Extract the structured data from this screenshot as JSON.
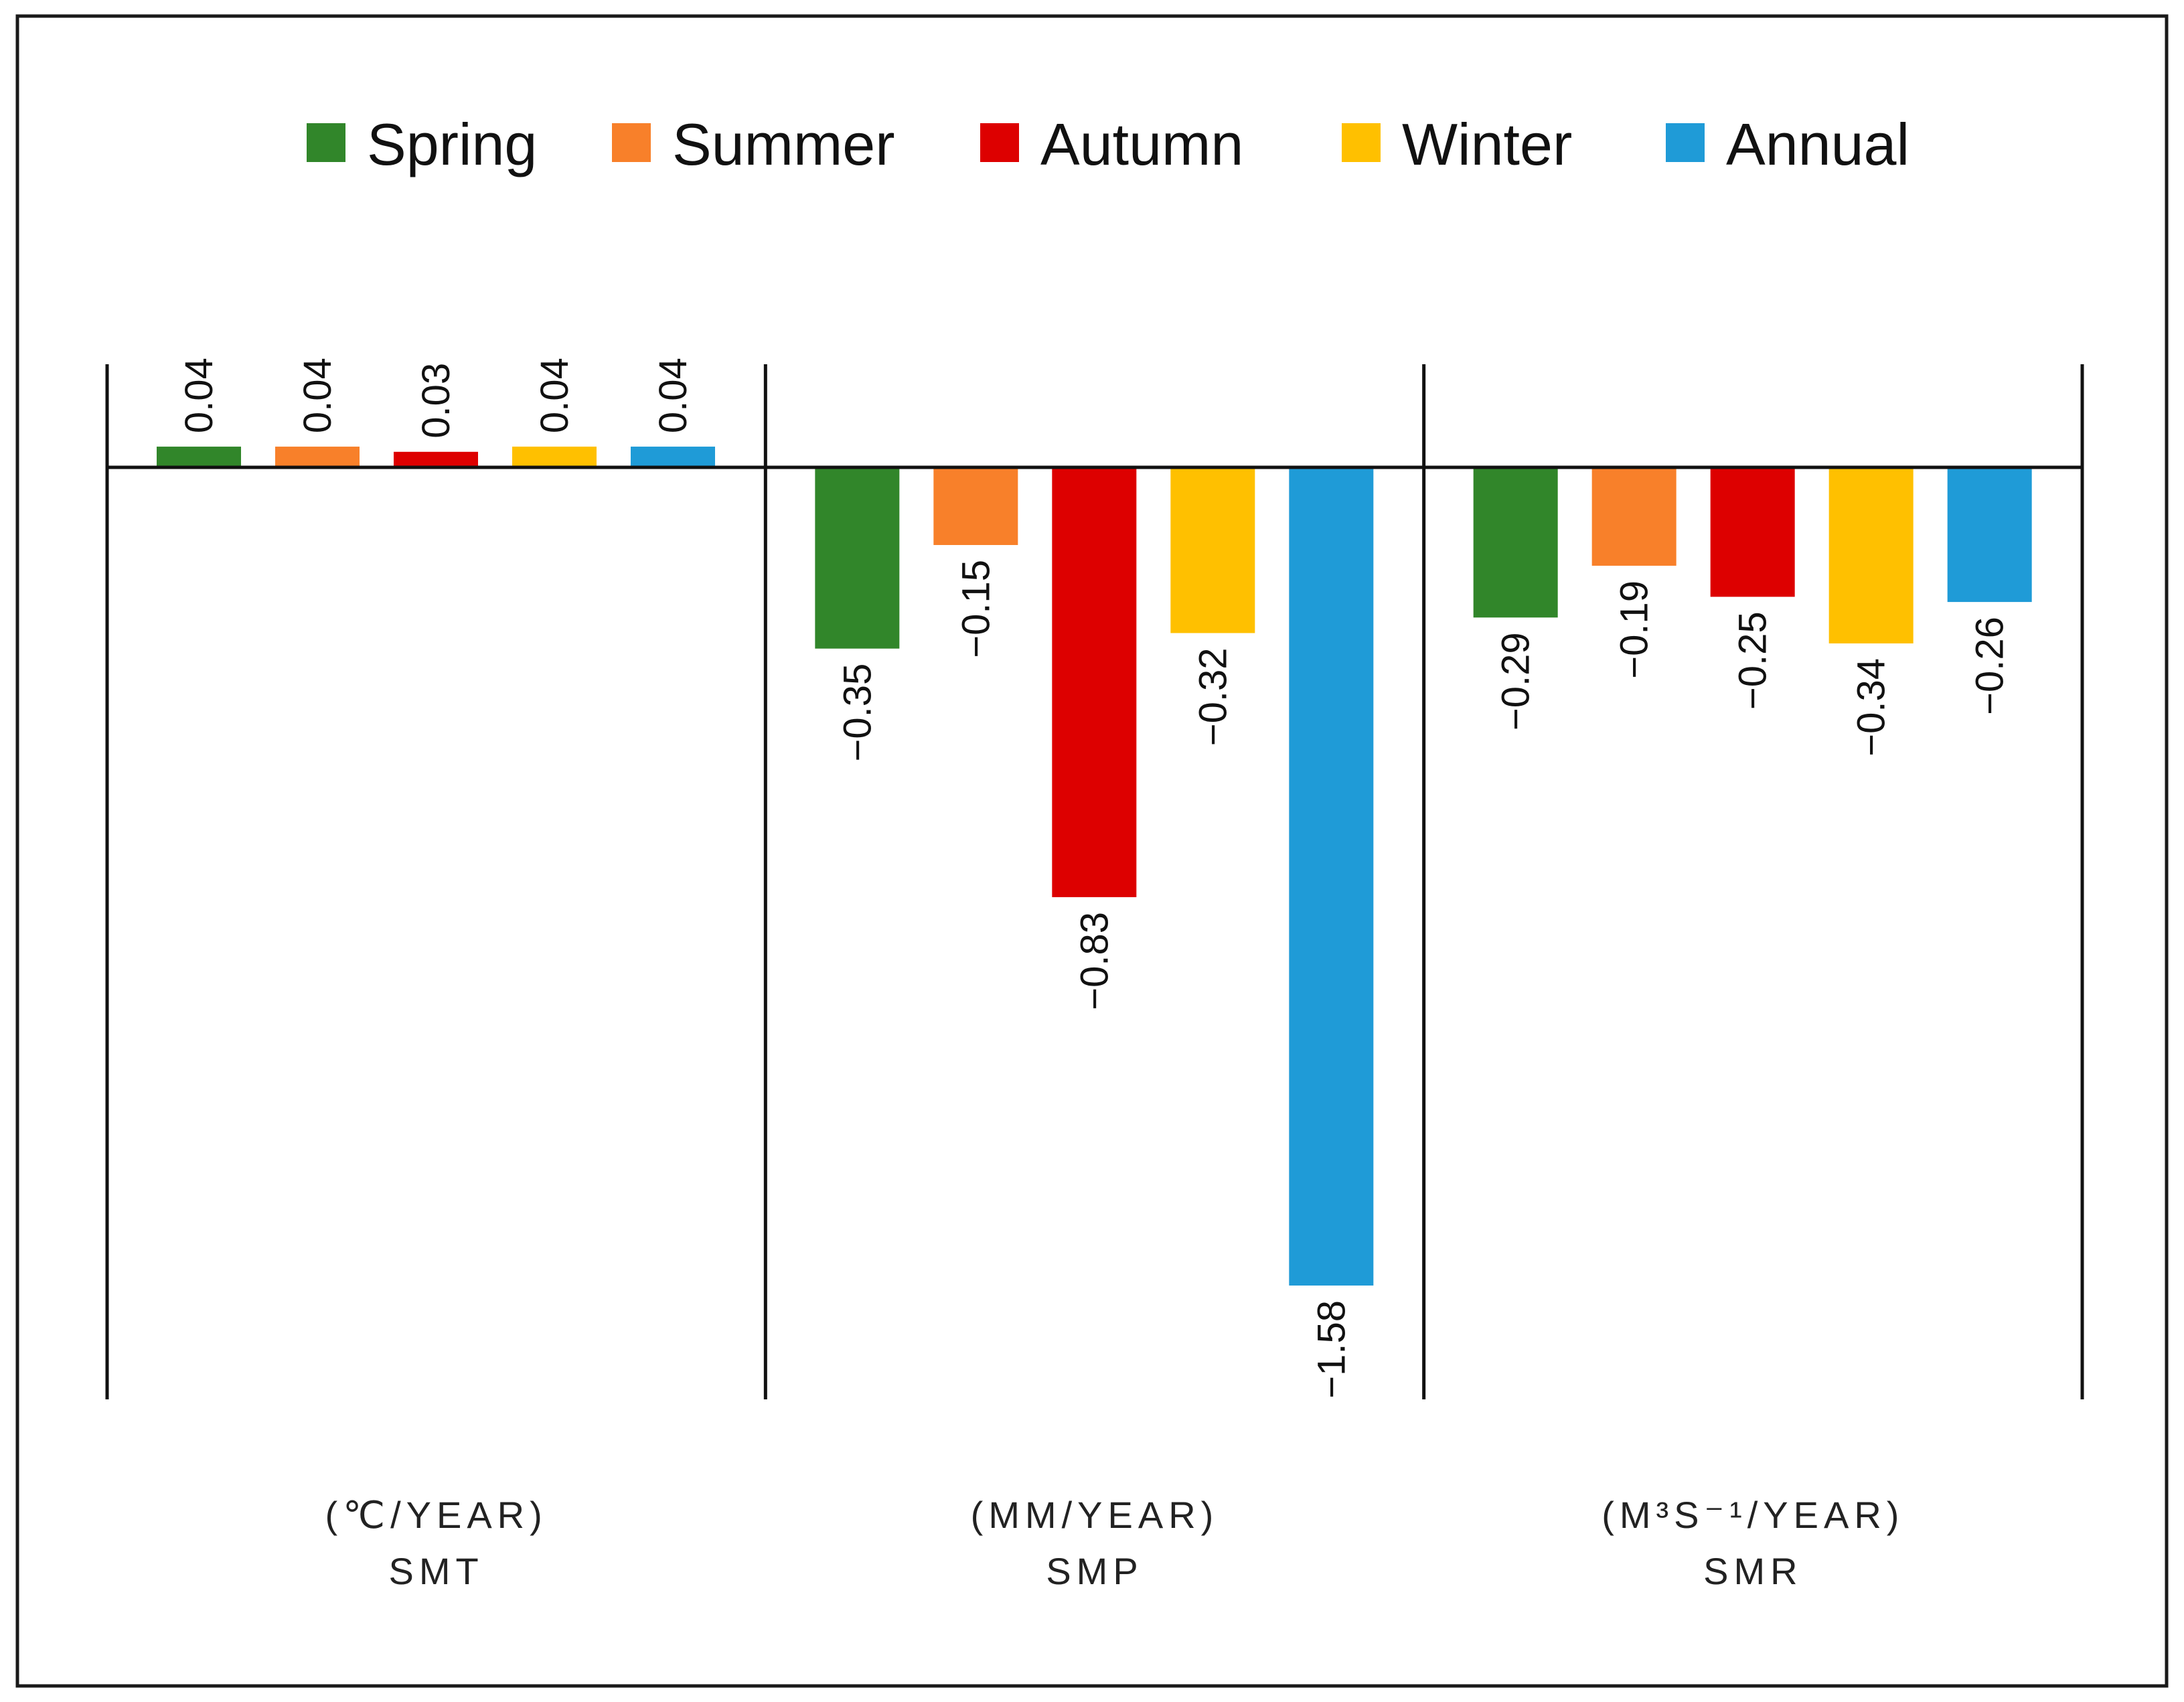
{
  "chart_data": {
    "type": "bar",
    "title": "",
    "xlabel": "",
    "ylabel": "",
    "categories": [
      {
        "unit": "(℃/YEAR)",
        "name": "SMT"
      },
      {
        "unit": "(MM/YEAR)",
        "name": "SMP"
      },
      {
        "unit": "(M³S⁻¹/YEAR)",
        "name": "SMR"
      }
    ],
    "series": [
      {
        "name": "Spring",
        "color": "#31862A",
        "values": [
          0.04,
          -0.35,
          -0.29
        ],
        "labels": [
          "0.04",
          "−0.35",
          "−0.29"
        ]
      },
      {
        "name": "Summer",
        "color": "#F8802A",
        "values": [
          0.04,
          -0.15,
          -0.19
        ],
        "labels": [
          "0.04",
          "−0.15",
          "−0.19"
        ]
      },
      {
        "name": "Autumn",
        "color": "#DD0000",
        "values": [
          0.03,
          -0.83,
          -0.25
        ],
        "labels": [
          "0.03",
          "−0.83",
          "−0.25"
        ]
      },
      {
        "name": "Winter",
        "color": "#FFC000",
        "values": [
          0.04,
          -0.32,
          -0.34
        ],
        "labels": [
          "0.04",
          "−0.32",
          "−0.34"
        ]
      },
      {
        "name": "Annual",
        "color": "#1F9BD7",
        "values": [
          0.04,
          -1.58,
          -0.26
        ],
        "labels": [
          "0.04",
          "−1.58",
          "−0.26"
        ]
      }
    ],
    "ylim": [
      -1.8,
      0.2
    ],
    "grid": false,
    "legend_position": "top-center",
    "data_labels": true,
    "data_label_rotation": "vertical"
  }
}
